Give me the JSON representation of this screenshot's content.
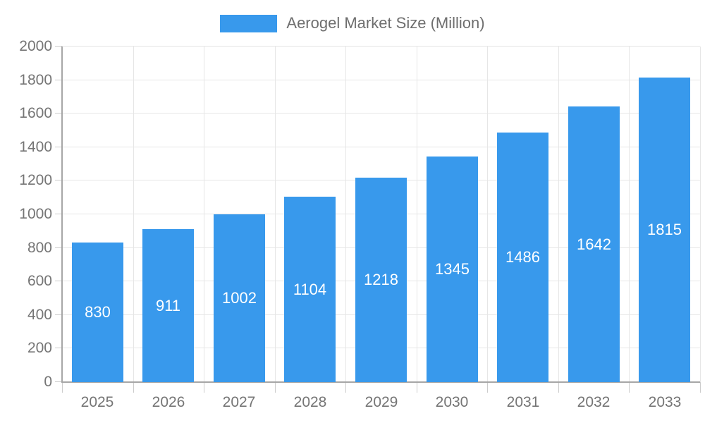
{
  "legend": {
    "label": "Aerogel Market Size (Million)"
  },
  "chart_data": {
    "type": "bar",
    "title": "Aerogel Market Size (Million)",
    "categories": [
      "2025",
      "2026",
      "2027",
      "2028",
      "2029",
      "2030",
      "2031",
      "2032",
      "2033"
    ],
    "series": [
      {
        "name": "Aerogel Market Size (Million)",
        "values": [
          830,
          911,
          1002,
          1104,
          1218,
          1345,
          1486,
          1642,
          1815
        ]
      }
    ],
    "xlabel": "",
    "ylabel": "",
    "ylim": [
      0,
      2000
    ],
    "y_ticks": [
      0,
      200,
      400,
      600,
      800,
      1000,
      1200,
      1400,
      1600,
      1800,
      2000
    ],
    "grid": "full",
    "legend_position": "top-center",
    "bar_color": "#3899EC",
    "bar_label_color": "#ffffff",
    "grid_color": "#e6e6e6",
    "axis_line_color": "#a6a6a6",
    "tick_color": "#cccccc",
    "axis_text_color": "#757575",
    "legend_text_color": "#6e6e6e"
  }
}
